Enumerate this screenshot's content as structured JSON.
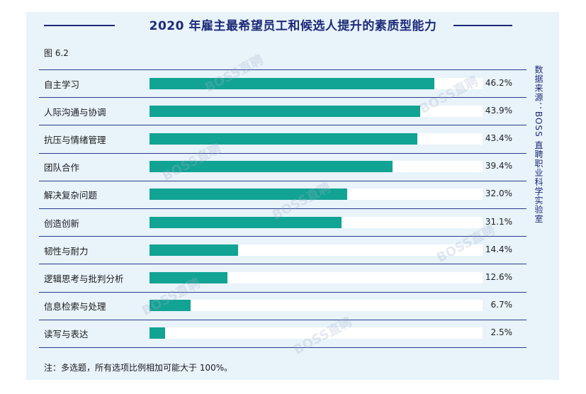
{
  "header": {
    "title": "2020 年雇主最希望员工和候选人提升的素质型能力",
    "figure_label": "图 6.2"
  },
  "source_text": "数据来源：BOSS 直聘职业科学实验室",
  "note": "注：多选题，所有选项比例相加可能大于 100%。",
  "watermark": "BOSS直聘",
  "chart_data": {
    "type": "bar",
    "orientation": "horizontal",
    "title": "2020 年雇主最希望员工和候选人提升的素质型能力",
    "categories": [
      "自主学习",
      "人际沟通与协调",
      "抗压与情绪管理",
      "团队合作",
      "解决复杂问题",
      "创造创新",
      "韧性与耐力",
      "逻辑思考与批判分析",
      "信息检索与处理",
      "读写与表达"
    ],
    "values": [
      46.2,
      43.9,
      43.4,
      39.4,
      32.0,
      31.1,
      14.4,
      12.6,
      6.7,
      2.5
    ],
    "value_labels": [
      "46.2%",
      "43.9%",
      "43.4%",
      "39.4%",
      "32.0%",
      "31.1%",
      "14.4%",
      "12.6%",
      "6.7%",
      "2.5%"
    ],
    "xlim": [
      0,
      54
    ],
    "unit": "%",
    "colors": {
      "bar": "#11a393",
      "track": "#ffffff",
      "accent": "#1d2a78"
    }
  }
}
